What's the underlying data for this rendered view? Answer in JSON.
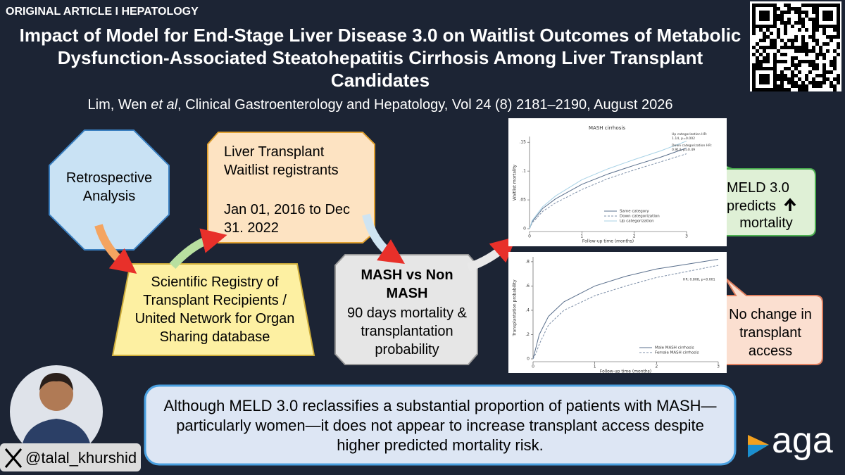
{
  "header": {
    "label": "ORIGINAL ARTICLE I HEPATOLOGY",
    "title": "Impact of Model for End-Stage Liver Disease 3.0 on Waitlist Outcomes of Metabolic Dysfunction-Associated Steatohepatitis Cirrhosis Among Liver Transplant Candidates",
    "citation": {
      "authors": "Lim, Wen",
      "etal": "et al",
      "source": ", Clinical Gastroenterology and Hepatology, Vol 24 (8) 2181–2190, August 2026"
    }
  },
  "flow": {
    "design": "Retrospective Analysis",
    "population": {
      "line1": "Liver Transplant Waitlist registrants",
      "line2": "Jan 01, 2016 to Dec 31. 2022"
    },
    "source": "Scientific Registry of Transplant Recipients / United Network for Organ Sharing database",
    "comparison": {
      "heading": "MASH vs Non MASH",
      "outcomes": "90 days mortality & transplantation probability"
    }
  },
  "callouts": {
    "mortality": {
      "text": "MELD 3.0 predicts",
      "tail": "mortality"
    },
    "access": "No change in transplant access"
  },
  "summary": "Although MELD 3.0 reclassifies a substantial proportion of patients with MASH—particularly women—it does not appear to increase transplant access despite higher predicted mortality risk.",
  "footer": {
    "handle": "@talal_khurshid",
    "logo": "aga"
  },
  "chart_data": [
    {
      "type": "line",
      "title": "MASH cirrhosis",
      "x_label": "Follow-up time (months)",
      "y_label": "Waitlist mortality",
      "x": [
        0,
        0.05,
        0.25,
        0.5,
        1,
        1.5,
        2,
        2.5,
        3
      ],
      "series": [
        {
          "name": "Same category",
          "color": "#5a6f8c",
          "style": "solid",
          "values": [
            0,
            0.012,
            0.035,
            0.052,
            0.077,
            0.095,
            0.11,
            0.124,
            0.14
          ]
        },
        {
          "name": "Down categorization",
          "color": "#7d8fa8",
          "style": "dashed",
          "values": [
            0,
            0.01,
            0.03,
            0.045,
            0.068,
            0.087,
            0.102,
            0.116,
            0.13
          ]
        },
        {
          "name": "Up categorization",
          "color": "#a8d2e6",
          "style": "solid",
          "values": [
            0,
            0.014,
            0.038,
            0.057,
            0.085,
            0.104,
            0.12,
            0.135,
            0.152
          ]
        }
      ],
      "annotations": [
        "Up categorization HR: 1.14, p=0.002",
        "Down categorization HR: 0.914, p=0.49"
      ],
      "xlim": [
        0,
        3
      ],
      "xticks": [
        0,
        1,
        2,
        3
      ],
      "ylim": [
        0,
        0.16
      ],
      "yticks": [
        0,
        {
          "value": 0.05,
          "label": ".05"
        },
        {
          "value": 0.1,
          "label": ".1"
        },
        {
          "value": 0.15,
          "label": ".15"
        }
      ]
    },
    {
      "type": "line",
      "y_label": "Transplantation probability",
      "x_label": "Follow-up time (months)",
      "x": [
        0,
        0.05,
        0.1,
        0.25,
        0.5,
        1,
        1.5,
        2,
        2.5,
        3
      ],
      "series": [
        {
          "name": "Male MASH cirrhosis",
          "color": "#5a6f8c",
          "style": "solid",
          "values": [
            0,
            0.1,
            0.2,
            0.35,
            0.47,
            0.6,
            0.68,
            0.74,
            0.78,
            0.82
          ]
        },
        {
          "name": "Female MASH cirrhosis",
          "color": "#7d8fa8",
          "style": "dashed",
          "values": [
            0,
            0.05,
            0.12,
            0.28,
            0.4,
            0.52,
            0.6,
            0.67,
            0.72,
            0.77
          ]
        }
      ],
      "annotations": [
        "HR: 0.808, p<0.001"
      ],
      "xlim": [
        0,
        3
      ],
      "xticks": [
        0,
        1,
        2,
        3
      ],
      "ylim": [
        0,
        0.84
      ],
      "yticks": [
        0,
        {
          "value": 0.2,
          "label": ".2"
        },
        {
          "value": 0.4,
          "label": ".4"
        },
        {
          "value": 0.6,
          "label": ".6"
        },
        {
          "value": 0.8,
          "label": ".8"
        }
      ]
    }
  ]
}
